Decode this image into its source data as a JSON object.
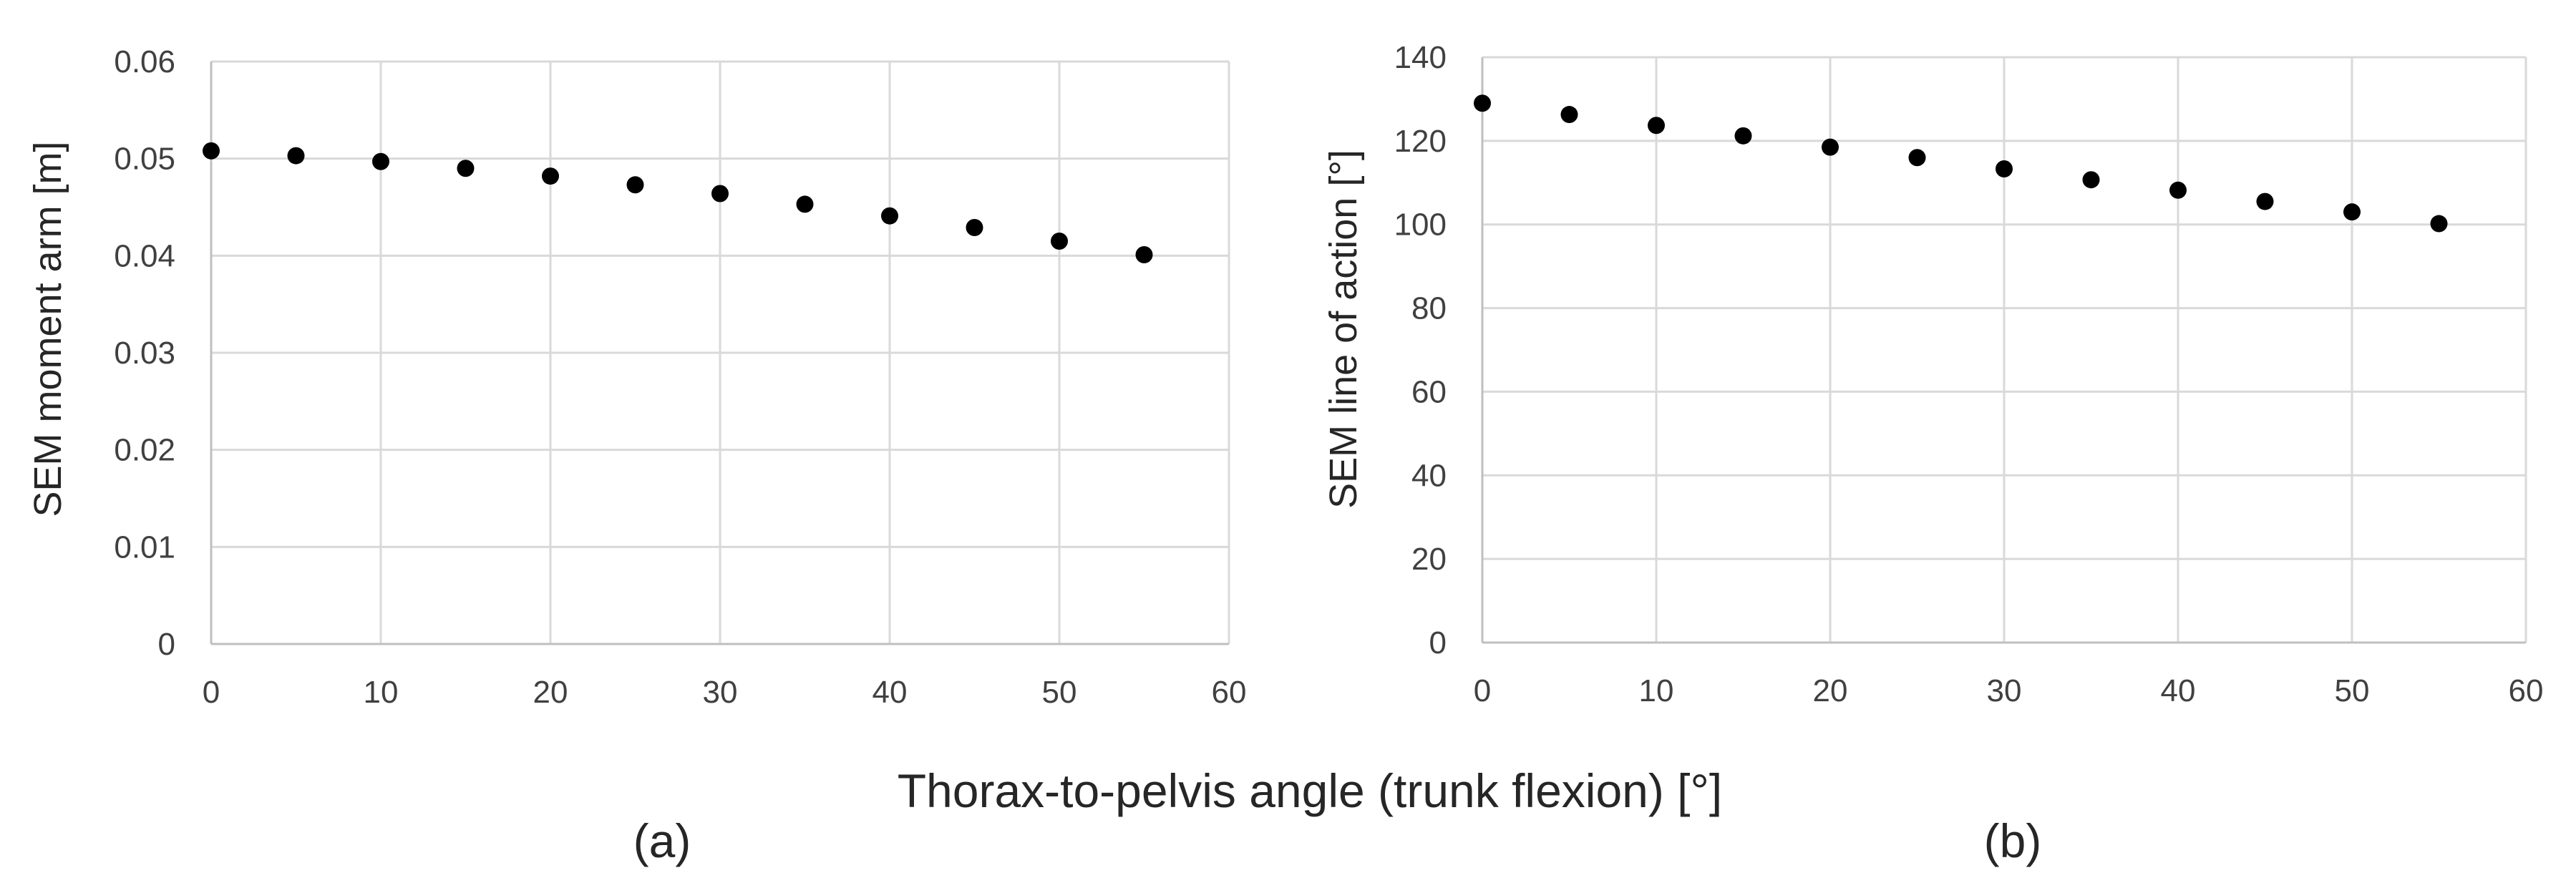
{
  "figure": {
    "shared_xlabel": "Thorax-to-pelvis angle (trunk flexion) [°]"
  },
  "chart_data": [
    {
      "type": "scatter",
      "panel_label": "(a)",
      "title": "",
      "xlabel": "",
      "ylabel": "SEM moment arm [m]",
      "xlim": [
        0,
        60
      ],
      "ylim": [
        0,
        0.06
      ],
      "xticks": [
        0,
        10,
        20,
        30,
        40,
        50,
        60
      ],
      "yticks": [
        0,
        0.01,
        0.02,
        0.03,
        0.04,
        0.05,
        0.06
      ],
      "ytick_labels": [
        "0",
        "0.01",
        "0.02",
        "0.03",
        "0.04",
        "0.05",
        "0.06"
      ],
      "xtick_labels": [
        "0",
        "10",
        "20",
        "30",
        "40",
        "50",
        "60"
      ],
      "grid": true,
      "marker_color": "#000000",
      "x": [
        0,
        5,
        10,
        15,
        20,
        25,
        30,
        35,
        40,
        45,
        50,
        55
      ],
      "y": [
        0.0508,
        0.0503,
        0.0497,
        0.049,
        0.0482,
        0.0473,
        0.0464,
        0.0453,
        0.0441,
        0.0429,
        0.0415,
        0.0401
      ]
    },
    {
      "type": "scatter",
      "panel_label": "(b)",
      "title": "",
      "xlabel": "",
      "ylabel": "SEM line of action [°]",
      "xlim": [
        0,
        60
      ],
      "ylim": [
        0,
        140
      ],
      "xticks": [
        0,
        10,
        20,
        30,
        40,
        50,
        60
      ],
      "yticks": [
        0,
        20,
        40,
        60,
        80,
        100,
        120,
        140
      ],
      "ytick_labels": [
        "0",
        "20",
        "40",
        "60",
        "80",
        "100",
        "120",
        "140"
      ],
      "xtick_labels": [
        "0",
        "10",
        "20",
        "30",
        "40",
        "50",
        "60"
      ],
      "grid": true,
      "marker_color": "#000000",
      "x": [
        0,
        5,
        10,
        15,
        20,
        25,
        30,
        35,
        40,
        45,
        50,
        55
      ],
      "y": [
        129,
        126.3,
        123.7,
        121.2,
        118.5,
        116,
        113.3,
        110.7,
        108.2,
        105.5,
        103,
        100.2
      ]
    }
  ]
}
